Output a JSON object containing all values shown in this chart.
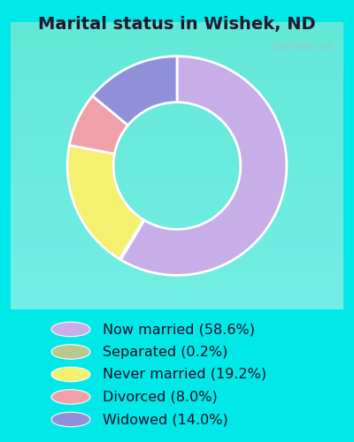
{
  "title": "Marital status in Wishek, ND",
  "slices": [
    {
      "label": "Now married (58.6%)",
      "value": 58.6,
      "color": "#c8aee8"
    },
    {
      "label": "Separated (0.2%)",
      "value": 0.2,
      "color": "#b8c890"
    },
    {
      "label": "Never married (19.2%)",
      "value": 19.2,
      "color": "#f5f070"
    },
    {
      "label": "Divorced (8.0%)",
      "value": 8.0,
      "color": "#f0a0a8"
    },
    {
      "label": "Widowed (14.0%)",
      "value": 14.0,
      "color": "#9090d8"
    }
  ],
  "bg_outer": "#00e8e8",
  "bg_inner_top": "#e8f5e8",
  "bg_inner_bottom": "#d0ecd8",
  "donut_width": 0.42,
  "title_fontsize": 14,
  "legend_fontsize": 11.5,
  "watermark": "City-Data.com"
}
